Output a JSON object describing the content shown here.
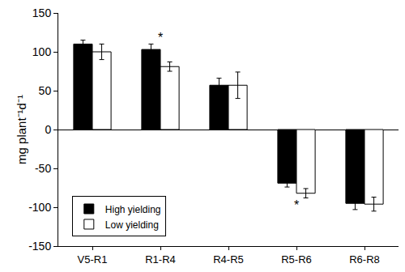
{
  "chart_data": {
    "type": "bar",
    "y_label": "mg plant⁻¹d⁻¹",
    "categories": [
      "V5-R1",
      "R1-R4",
      "R4-R5",
      "R5-R6",
      "R6-R8"
    ],
    "series": [
      {
        "name": "High yielding",
        "color": "#000000",
        "values": [
          110,
          103,
          57,
          -69,
          -95
        ],
        "errors": [
          5,
          7,
          9,
          5,
          8
        ]
      },
      {
        "name": "Low yielding",
        "color": "#ffffff",
        "values": [
          100,
          81,
          57,
          -82,
          -96
        ],
        "errors": [
          10,
          6,
          17,
          6,
          9
        ]
      }
    ],
    "ylim": [
      -150,
      150
    ],
    "yticks": [
      -150,
      -100,
      -50,
      0,
      50,
      100,
      150
    ],
    "grid": false,
    "legend": "lower left",
    "annotations": [
      {
        "text": "*",
        "category": "R1-R4",
        "y": 118
      },
      {
        "text": "*",
        "category": "R5-R6",
        "y": -97
      }
    ]
  }
}
